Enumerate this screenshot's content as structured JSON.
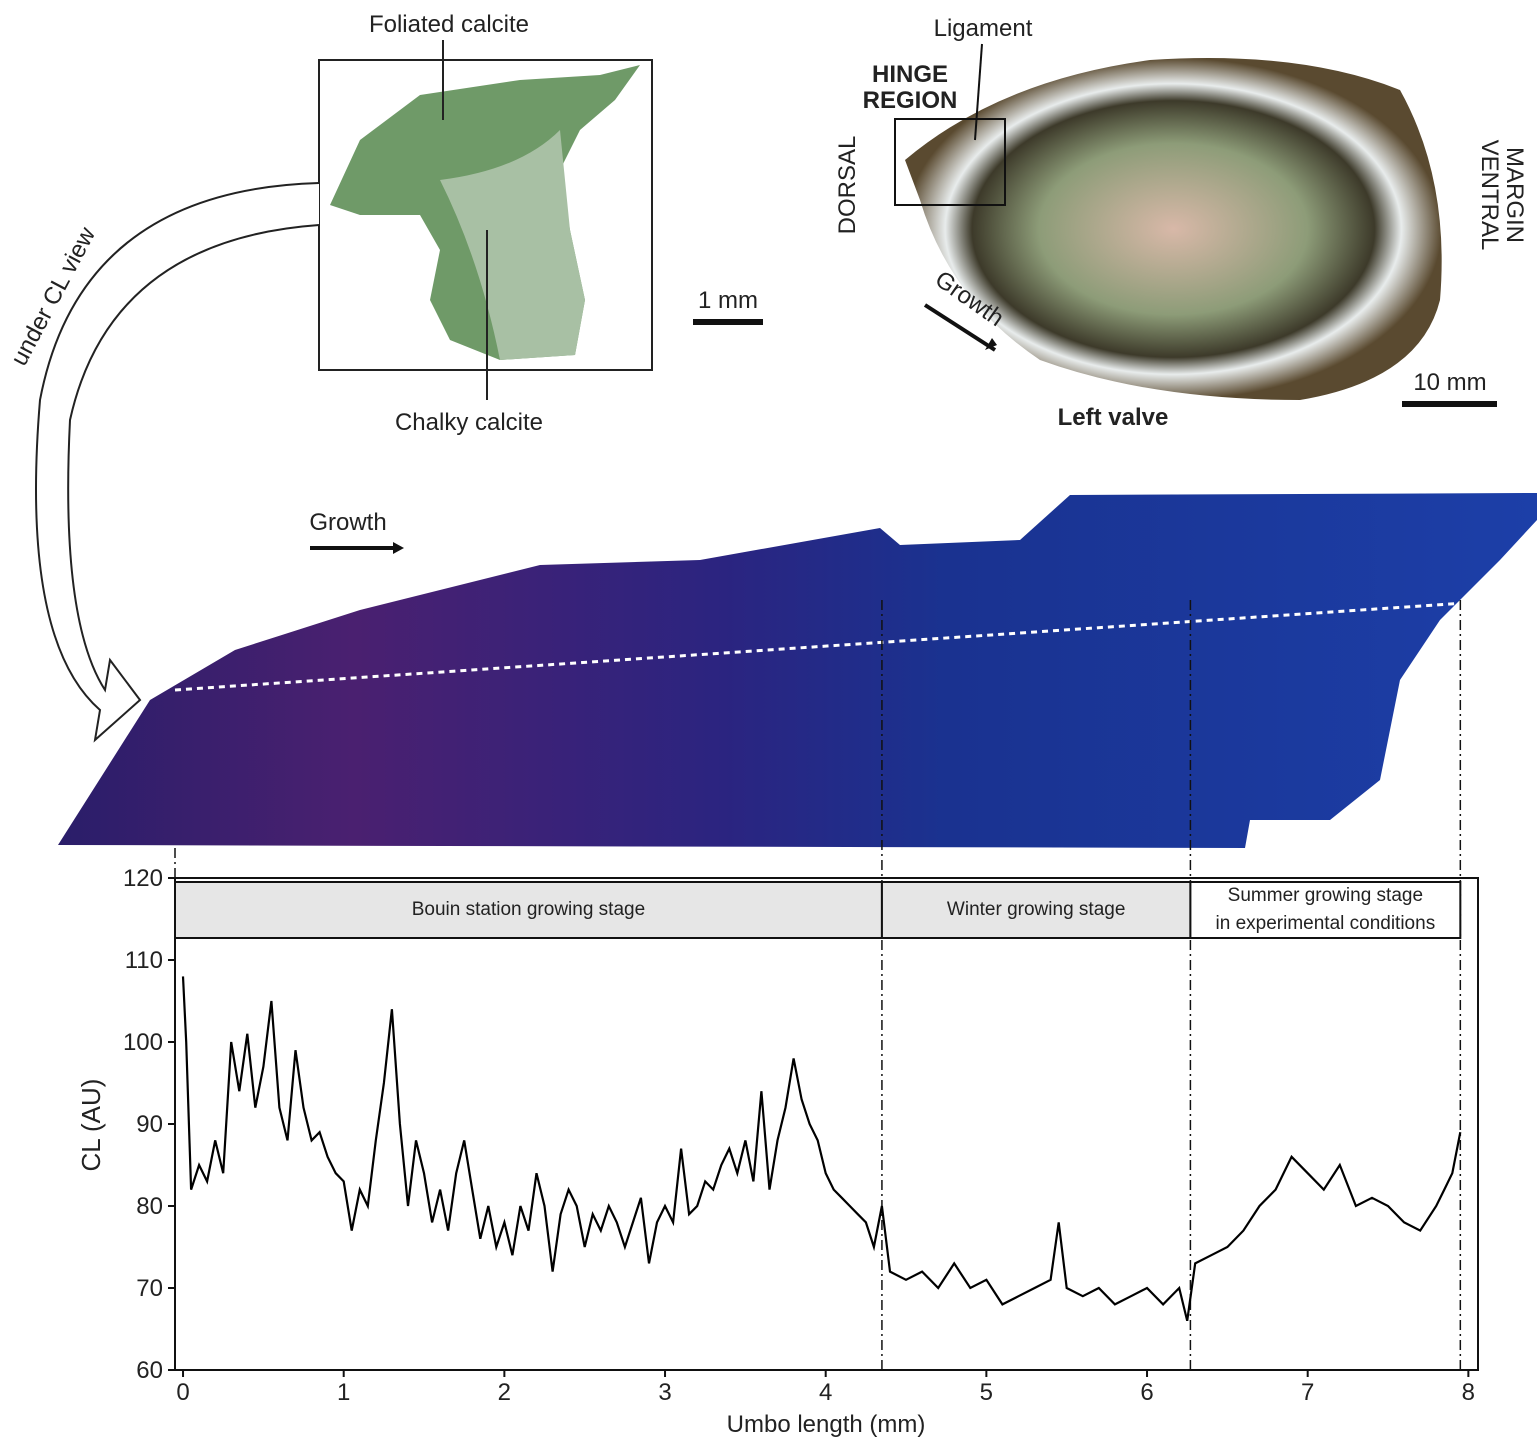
{
  "labels": {
    "foliated": "Foliated calcite",
    "chalky": "Chalky calcite",
    "cl_view": "under CL view",
    "scale_small": "1 mm",
    "ligament": "Ligament",
    "hinge": [
      "HINGE",
      "REGION"
    ],
    "dorsal": "DORSAL",
    "ventral": [
      "VENTRAL",
      "MARGIN"
    ],
    "growth_oyster": "Growth",
    "scale_large": "10 mm",
    "left_valve": "Left valve",
    "growth_cl": "Growth"
  },
  "chart_data": {
    "type": "line",
    "xlabel": "Umbo length (mm)",
    "ylabel": "CL (AU)",
    "color": "#000000",
    "xlim": [
      -0.05,
      8.06
    ],
    "ylim": [
      60,
      120
    ],
    "xticks": [
      0,
      1,
      2,
      3,
      4,
      5,
      6,
      7,
      8
    ],
    "yticks": [
      60,
      70,
      80,
      90,
      100,
      110,
      120
    ],
    "stages": [
      {
        "label": [
          "Bouin station growing stage"
        ],
        "end": 4.35
      },
      {
        "label": [
          "Winter growing stage"
        ],
        "end": 6.27
      },
      {
        "label": [
          "Summer growing stage",
          "in experimental conditions"
        ],
        "end": 7.95
      }
    ],
    "x": [
      0,
      0.02,
      0.05,
      0.1,
      0.15,
      0.2,
      0.25,
      0.3,
      0.35,
      0.4,
      0.45,
      0.5,
      0.55,
      0.6,
      0.65,
      0.7,
      0.75,
      0.8,
      0.85,
      0.9,
      0.95,
      1.0,
      1.05,
      1.1,
      1.15,
      1.2,
      1.25,
      1.3,
      1.35,
      1.4,
      1.45,
      1.5,
      1.55,
      1.6,
      1.65,
      1.7,
      1.75,
      1.8,
      1.85,
      1.9,
      1.95,
      2.0,
      2.05,
      2.1,
      2.15,
      2.2,
      2.25,
      2.3,
      2.35,
      2.4,
      2.45,
      2.5,
      2.55,
      2.6,
      2.65,
      2.7,
      2.75,
      2.8,
      2.85,
      2.9,
      2.95,
      3.0,
      3.05,
      3.1,
      3.15,
      3.2,
      3.25,
      3.3,
      3.35,
      3.4,
      3.45,
      3.5,
      3.55,
      3.6,
      3.65,
      3.7,
      3.75,
      3.8,
      3.85,
      3.9,
      3.95,
      4.0,
      4.05,
      4.1,
      4.15,
      4.2,
      4.25,
      4.3,
      4.35,
      4.4,
      4.5,
      4.6,
      4.7,
      4.8,
      4.9,
      5.0,
      5.1,
      5.2,
      5.3,
      5.4,
      5.45,
      5.5,
      5.6,
      5.7,
      5.8,
      5.9,
      6.0,
      6.1,
      6.2,
      6.25,
      6.3,
      6.4,
      6.5,
      6.6,
      6.7,
      6.8,
      6.9,
      7.0,
      7.1,
      7.2,
      7.3,
      7.4,
      7.5,
      7.6,
      7.7,
      7.8,
      7.85,
      7.9,
      7.95
    ],
    "values": [
      108,
      100,
      82,
      85,
      83,
      88,
      84,
      100,
      94,
      101,
      92,
      97,
      105,
      92,
      88,
      99,
      92,
      88,
      89,
      86,
      84,
      83,
      77,
      82,
      80,
      88,
      95,
      104,
      90,
      80,
      88,
      84,
      78,
      82,
      77,
      84,
      88,
      82,
      76,
      80,
      75,
      78,
      74,
      80,
      77,
      84,
      80,
      72,
      79,
      82,
      80,
      75,
      79,
      77,
      80,
      78,
      75,
      78,
      81,
      73,
      78,
      80,
      78,
      87,
      79,
      80,
      83,
      82,
      85,
      87,
      84,
      88,
      83,
      94,
      82,
      88,
      92,
      98,
      93,
      90,
      88,
      84,
      82,
      81,
      80,
      79,
      78,
      75,
      80,
      72,
      71,
      72,
      70,
      73,
      70,
      71,
      68,
      69,
      70,
      71,
      78,
      70,
      69,
      70,
      68,
      69,
      70,
      68,
      70,
      66,
      73,
      74,
      75,
      77,
      80,
      82,
      86,
      84,
      82,
      85,
      80,
      81,
      80,
      78,
      77,
      80,
      82,
      84,
      89
    ]
  }
}
